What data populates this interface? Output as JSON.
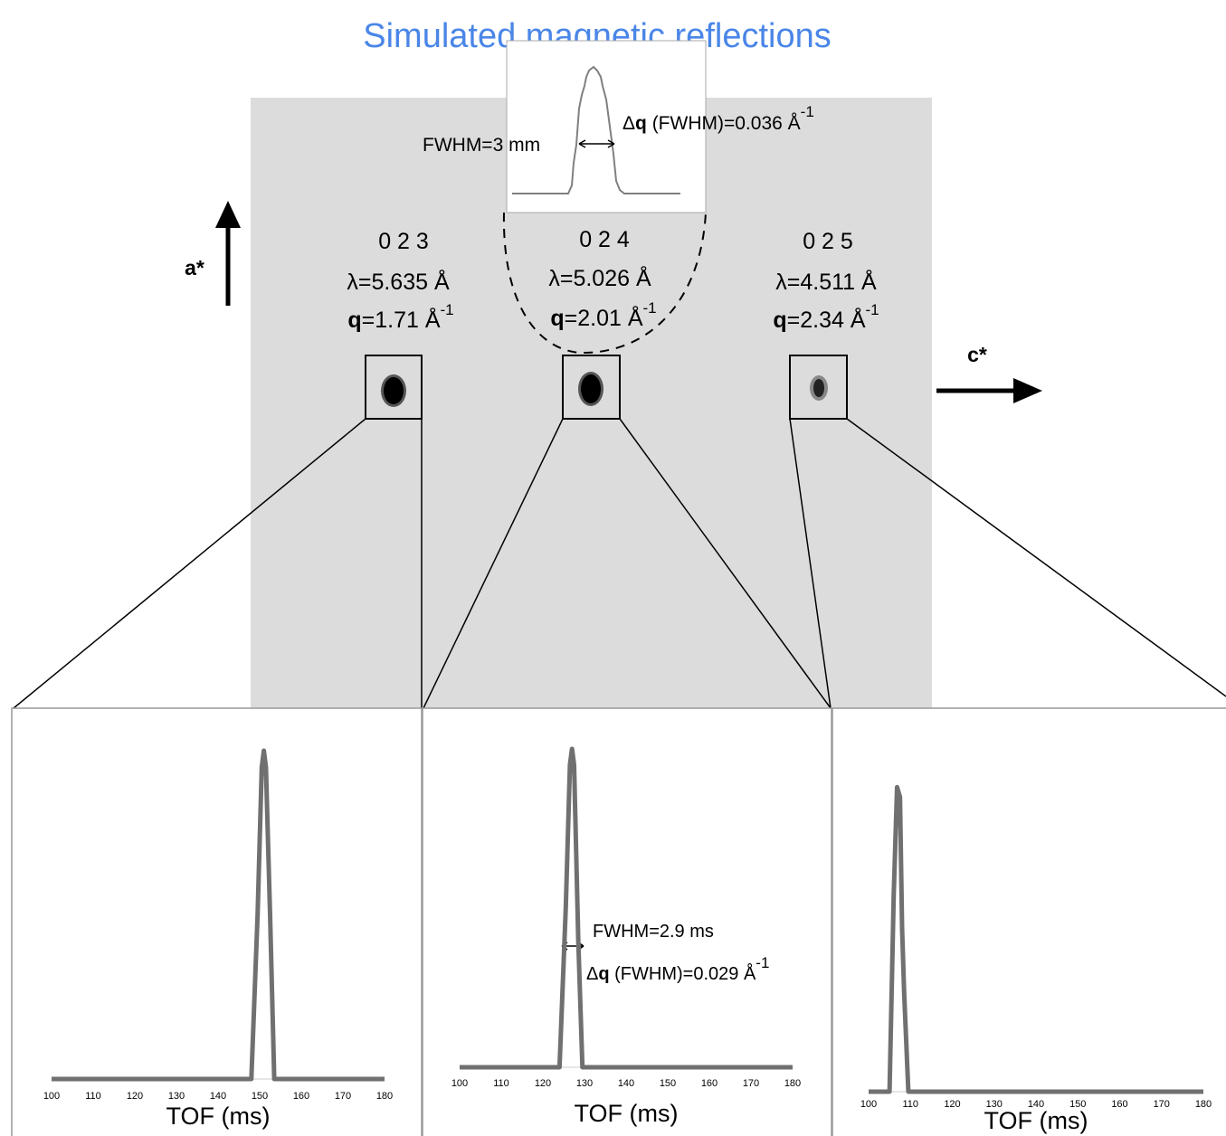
{
  "title": "Simulated magnetic reflections",
  "axis_labels": {
    "a": "a*",
    "c": "c*"
  },
  "reflections": [
    {
      "hkl": "0 2 3",
      "lambda": "λ=5.635 Å",
      "q": [
        "q",
        "=1.71 Å",
        "-1"
      ]
    },
    {
      "hkl": "0 2 4",
      "lambda": "λ=5.026 Å",
      "q": [
        "q",
        "=2.01 Å",
        "-1"
      ]
    },
    {
      "hkl": "0 2 5",
      "lambda": "λ=4.511 Å",
      "q": [
        "q",
        "=2.34 Å",
        "-1"
      ]
    }
  ],
  "inset": {
    "fwhm": "FWHM=3 mm",
    "dq": [
      "Δ",
      "q",
      " (FWHM)=0.036 Å",
      "-1"
    ]
  },
  "chart_data": [
    {
      "type": "line",
      "xlabel": "TOF (ms)",
      "color": "#707070",
      "x": [
        100,
        148,
        149.5,
        150.5,
        151,
        151.5,
        152.5,
        153.5,
        180
      ],
      "values": [
        0,
        0,
        0.5,
        0.95,
        1,
        0.95,
        0.5,
        0,
        0
      ],
      "xlim": [
        100,
        180
      ],
      "ylim": [
        0,
        1
      ],
      "xticks": [
        100,
        110,
        120,
        130,
        140,
        150,
        160,
        170,
        180
      ]
    },
    {
      "type": "line",
      "xlabel": "TOF (ms)",
      "color": "#707070",
      "x": [
        100,
        124,
        125.5,
        126.5,
        127,
        127.5,
        128.5,
        129.5,
        180
      ],
      "values": [
        0,
        0,
        0.5,
        0.95,
        1,
        0.95,
        0.4,
        0,
        0
      ],
      "xlim": [
        100,
        180
      ],
      "ylim": [
        0,
        1
      ],
      "xticks": [
        100,
        110,
        120,
        130,
        140,
        150,
        160,
        170,
        180
      ],
      "annotations": {
        "fwhm": "FWHM=2.9 ms",
        "dq": [
          "Δ",
          "q",
          " (FWHM)=0.029 Å",
          "-1"
        ]
      }
    },
    {
      "type": "line",
      "xlabel": "TOF (ms)",
      "color": "#707070",
      "x": [
        100,
        105,
        106,
        106.8,
        107.5,
        108,
        108.5,
        109.5,
        180
      ],
      "values": [
        0,
        0,
        0.6,
        0.93,
        0.9,
        0.5,
        0.3,
        0,
        0
      ],
      "xlim": [
        100,
        180
      ],
      "ylim": [
        0,
        1
      ],
      "xticks": [
        100,
        110,
        120,
        130,
        140,
        150,
        160,
        170,
        180
      ]
    }
  ]
}
